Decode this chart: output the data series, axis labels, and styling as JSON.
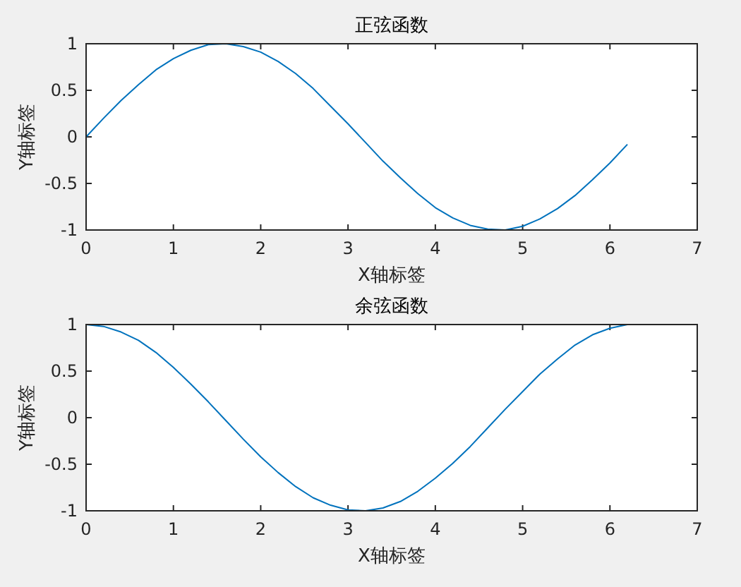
{
  "chart_data": [
    {
      "type": "line",
      "title": "正弦函数",
      "xlabel": "X轴标签",
      "ylabel": "Y轴标签",
      "x": [
        0,
        0.2,
        0.4,
        0.6,
        0.8,
        1.0,
        1.2,
        1.4,
        1.6,
        1.8,
        2.0,
        2.2,
        2.4,
        2.6,
        2.8,
        3.0,
        3.2,
        3.4,
        3.6,
        3.8,
        4.0,
        4.2,
        4.4,
        4.6,
        4.8,
        5.0,
        5.2,
        5.4,
        5.6,
        5.8,
        6.0,
        6.2
      ],
      "series": [
        {
          "color": "#0072bd",
          "values": [
            0,
            0.2,
            0.39,
            0.56,
            0.72,
            0.84,
            0.93,
            0.99,
            1.0,
            0.97,
            0.91,
            0.81,
            0.68,
            0.52,
            0.33,
            0.14,
            -0.06,
            -0.26,
            -0.44,
            -0.61,
            -0.76,
            -0.87,
            -0.95,
            -0.99,
            -1.0,
            -0.96,
            -0.88,
            -0.77,
            -0.63,
            -0.46,
            -0.28,
            -0.08
          ]
        }
      ],
      "xlim": [
        0,
        7
      ],
      "ylim": [
        -1,
        1
      ],
      "xticks": [
        0,
        1,
        2,
        3,
        4,
        5,
        6,
        7
      ],
      "yticks": [
        -1,
        -0.5,
        0,
        0.5,
        1
      ]
    },
    {
      "type": "line",
      "title": "余弦函数",
      "xlabel": "X轴标签",
      "ylabel": "Y轴标签",
      "x": [
        0,
        0.2,
        0.4,
        0.6,
        0.8,
        1.0,
        1.2,
        1.4,
        1.6,
        1.8,
        2.0,
        2.2,
        2.4,
        2.6,
        2.8,
        3.0,
        3.2,
        3.4,
        3.6,
        3.8,
        4.0,
        4.2,
        4.4,
        4.6,
        4.8,
        5.0,
        5.2,
        5.4,
        5.6,
        5.8,
        6.0,
        6.2
      ],
      "series": [
        {
          "color": "#0072bd",
          "values": [
            1,
            0.98,
            0.92,
            0.83,
            0.7,
            0.54,
            0.36,
            0.17,
            -0.03,
            -0.23,
            -0.42,
            -0.59,
            -0.74,
            -0.86,
            -0.94,
            -0.99,
            -1.0,
            -0.97,
            -0.9,
            -0.79,
            -0.65,
            -0.49,
            -0.31,
            -0.11,
            0.09,
            0.28,
            0.47,
            0.63,
            0.78,
            0.89,
            0.96,
            1.0
          ]
        }
      ],
      "xlim": [
        0,
        7
      ],
      "ylim": [
        -1,
        1
      ],
      "xticks": [
        0,
        1,
        2,
        3,
        4,
        5,
        6,
        7
      ],
      "yticks": [
        -1,
        -0.5,
        0,
        0.5,
        1
      ]
    }
  ]
}
